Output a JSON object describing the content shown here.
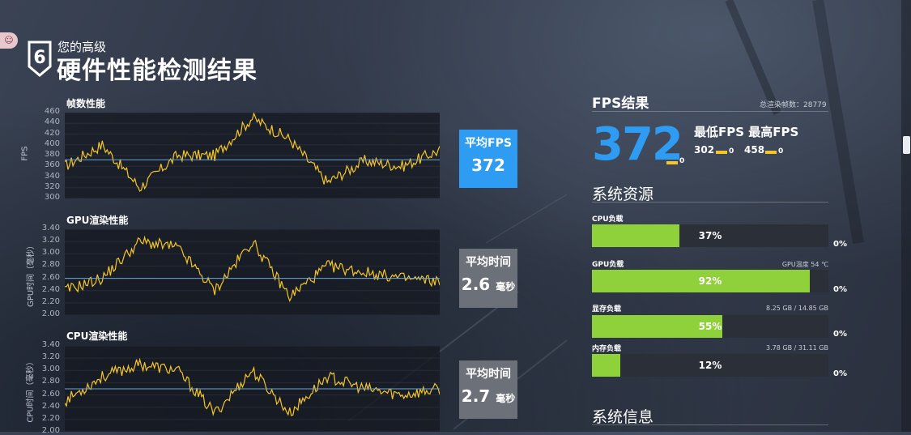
{
  "header": {
    "level_number": "6",
    "subtitle": "您的高级",
    "title": "硬件性能检测结果",
    "badge_icon": "user-badge-icon"
  },
  "fps_chart": {
    "title": "帧数性能",
    "ylabel": "FPS",
    "yticks": [
      "460",
      "440",
      "420",
      "400",
      "380",
      "360",
      "340",
      "320",
      "300"
    ],
    "ylim": [
      300,
      460
    ],
    "average": 372,
    "avg_label": "平均FPS",
    "avg_value": "372"
  },
  "gpu_chart": {
    "title": "GPU渲染性能",
    "ylabel": "GPU时间（毫秒）",
    "yticks": [
      "3.40",
      "3.20",
      "3.00",
      "2.80",
      "2.60",
      "2.40",
      "2.20",
      "2.00"
    ],
    "ylim": [
      2.0,
      3.4
    ],
    "average": 2.6,
    "avg_label": "平均时间",
    "avg_value": "2.6",
    "avg_unit": "毫秒"
  },
  "cpu_chart": {
    "title": "CPU渲染性能",
    "ylabel": "CPU时间（毫秒）",
    "yticks": [
      "3.40",
      "3.20",
      "3.00",
      "2.80",
      "2.60",
      "2.40",
      "2.20",
      "2.00"
    ],
    "ylim": [
      2.0,
      3.4
    ],
    "average": 2.7,
    "avg_label": "平均时间",
    "avg_value": "2.7",
    "avg_unit": "毫秒"
  },
  "chart_data": [
    {
      "type": "line",
      "title": "帧数性能",
      "ylabel": "FPS",
      "ylim": [
        300,
        460
      ],
      "x": [
        0,
        10,
        20,
        30,
        40,
        50,
        60,
        70,
        80,
        90,
        100
      ],
      "series": [
        {
          "values": [
            360,
            400,
            320,
            380,
            380,
            450,
            410,
            330,
            370,
            360,
            390
          ]
        }
      ]
    },
    {
      "type": "line",
      "title": "GPU渲染性能",
      "ylabel": "GPU时间（毫秒）",
      "ylim": [
        2.0,
        3.4
      ],
      "x": [
        0,
        10,
        20,
        30,
        40,
        50,
        60,
        70,
        80,
        90,
        100
      ],
      "series": [
        {
          "values": [
            2.4,
            2.6,
            3.2,
            3.1,
            2.4,
            3.2,
            2.3,
            2.8,
            2.7,
            2.6,
            2.55
          ]
        }
      ]
    },
    {
      "type": "line",
      "title": "CPU渲染性能",
      "ylabel": "CPU时间（毫秒）",
      "ylim": [
        2.0,
        3.4
      ],
      "x": [
        0,
        10,
        20,
        30,
        40,
        50,
        60,
        70,
        80,
        90,
        100
      ],
      "series": [
        {
          "values": [
            2.5,
            2.9,
            3.1,
            3.0,
            2.3,
            3.0,
            2.3,
            2.9,
            2.7,
            2.6,
            2.7
          ]
        }
      ]
    }
  ],
  "fps_result": {
    "title": "FPS结果",
    "total_label": "总渲染帧数：28779",
    "average": "372",
    "average_sub": "0",
    "min_max_label": "最低FPS 最高FPS",
    "min": "302",
    "min_sub": "0",
    "max": "458",
    "max_sub": "0"
  },
  "resources": {
    "title": "系统资源",
    "items": [
      {
        "label": "CPU负载",
        "extra": "",
        "percent": 37,
        "percent_label": "37%",
        "side": "0%"
      },
      {
        "label": "GPU负载",
        "extra": "GPU温度 54 ℃",
        "percent": 92,
        "percent_label": "92%",
        "side": "0%"
      },
      {
        "label": "显存负载",
        "extra": "8.25 GB / 14.85 GB",
        "percent": 55,
        "percent_label": "55%",
        "side": "0%"
      },
      {
        "label": "内存负载",
        "extra": "3.78 GB / 31.11 GB",
        "percent": 12,
        "percent_label": "12%",
        "side": "0%"
      }
    ]
  },
  "system_info": {
    "title": "系统信息"
  },
  "colors": {
    "accent_blue": "#2d9cf2",
    "line_yellow": "#f6c627",
    "bar_green": "#8fd13a",
    "avg_line": "#6aa9d8"
  }
}
